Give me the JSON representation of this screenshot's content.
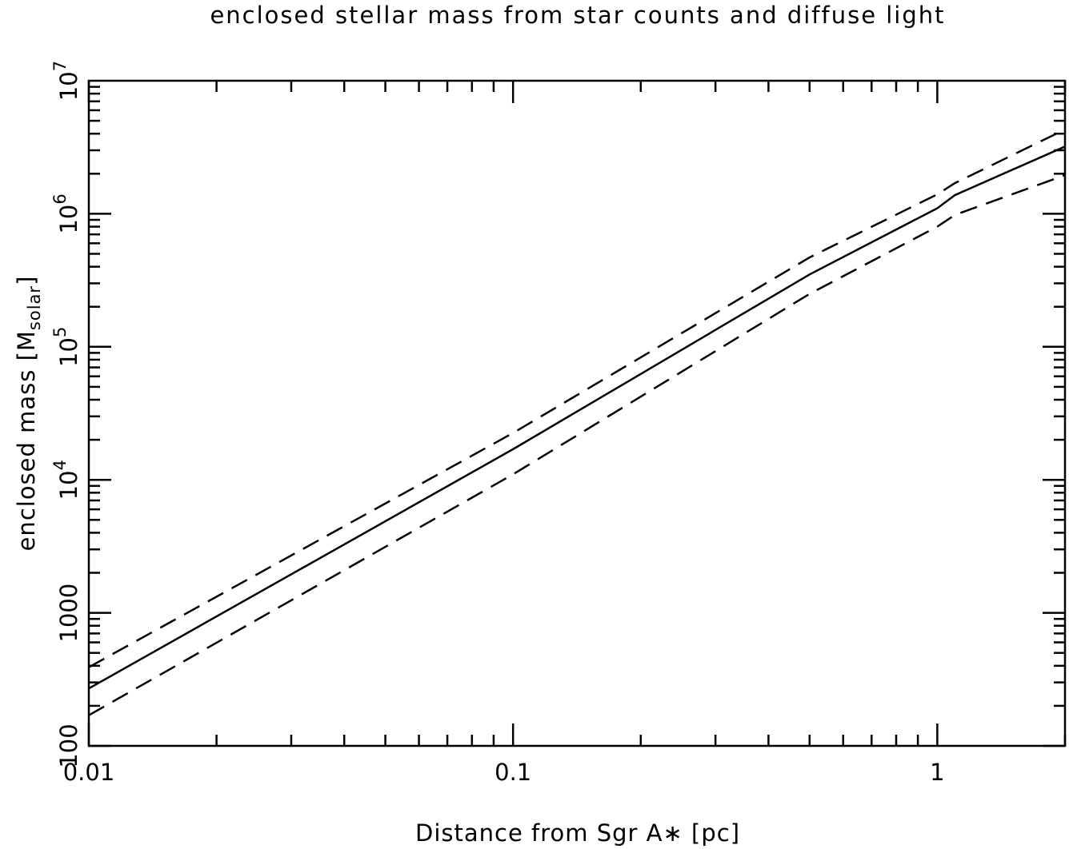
{
  "chart_data": {
    "type": "line",
    "title": "enclosed stellar mass from star counts and diffuse light",
    "xlabel": "Distance from Sgr A∗ [pc]",
    "ylabel": {
      "main": "enclosed mass [M",
      "sub": "solar",
      "close": "]"
    },
    "x_scale": "log",
    "y_scale": "log",
    "xlim": [
      0.01,
      2.0
    ],
    "ylim": [
      100,
      10000000
    ],
    "grid": false,
    "x_ticks": [
      {
        "value": 0.01,
        "label": "0.01"
      },
      {
        "value": 0.1,
        "label": "0.1"
      },
      {
        "value": 1,
        "label": "1"
      }
    ],
    "y_ticks": [
      {
        "value": 100,
        "base": "100",
        "exp": ""
      },
      {
        "value": 1000,
        "base": "1000",
        "exp": ""
      },
      {
        "value": 10000,
        "base": "10",
        "exp": "4"
      },
      {
        "value": 100000,
        "base": "10",
        "exp": "5"
      },
      {
        "value": 1000000,
        "base": "10",
        "exp": "6"
      },
      {
        "value": 10000000,
        "base": "10",
        "exp": "7"
      }
    ],
    "series": [
      {
        "style": "solid",
        "color": "#000000",
        "x": [
          0.01,
          0.1,
          0.5,
          1.0,
          1.1,
          2.0
        ],
        "y": [
          270,
          17000,
          350000,
          1100000,
          1380000,
          3200000
        ]
      },
      {
        "style": "dashed",
        "color": "#000000",
        "x": [
          0.01,
          0.1,
          0.5,
          1.0,
          1.1,
          2.0
        ],
        "y": [
          390,
          22500,
          470000,
          1400000,
          1700000,
          4300000
        ]
      },
      {
        "style": "dashed",
        "color": "#000000",
        "x": [
          0.01,
          0.1,
          0.5,
          1.0,
          1.1,
          2.0
        ],
        "y": [
          170,
          11000,
          250000,
          800000,
          980000,
          1950000
        ]
      }
    ]
  }
}
